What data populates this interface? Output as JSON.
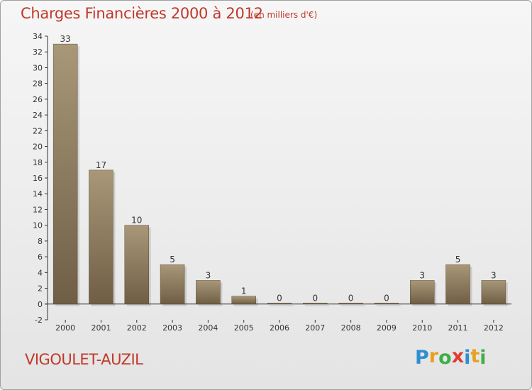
{
  "header": {
    "title": "Charges Financières 2000 à 2012",
    "subtitle": "(en milliers d'€)"
  },
  "footer": {
    "place": "VIGOULET-AUZIL",
    "logo_letters": [
      "P",
      "r",
      "o",
      "x",
      "i",
      "t",
      "i"
    ],
    "logo_colors": [
      "#2e8fd0",
      "#e8a020",
      "#3fae49",
      "#e03c31",
      "#2e8fd0",
      "#e8a020",
      "#3fae49"
    ]
  },
  "chart_data": {
    "type": "bar",
    "title": "Charges Financières 2000 à 2012",
    "subtitle": "(en milliers d'€)",
    "categories": [
      "2000",
      "2001",
      "2002",
      "2003",
      "2004",
      "2005",
      "2006",
      "2007",
      "2008",
      "2009",
      "2010",
      "2011",
      "2012"
    ],
    "values": [
      33,
      17,
      10,
      5,
      3,
      1,
      0,
      0,
      0,
      0,
      3,
      5,
      3
    ],
    "ylim": [
      -2,
      34
    ],
    "yticks": [
      -2,
      0,
      2,
      4,
      6,
      8,
      10,
      12,
      14,
      16,
      18,
      20,
      22,
      24,
      26,
      28,
      30,
      32,
      34
    ],
    "grid": false,
    "colors": {
      "bar_light": "#a89878",
      "bar_dark": "#6f5e45",
      "axis": "#333333",
      "text": "#333333"
    }
  }
}
